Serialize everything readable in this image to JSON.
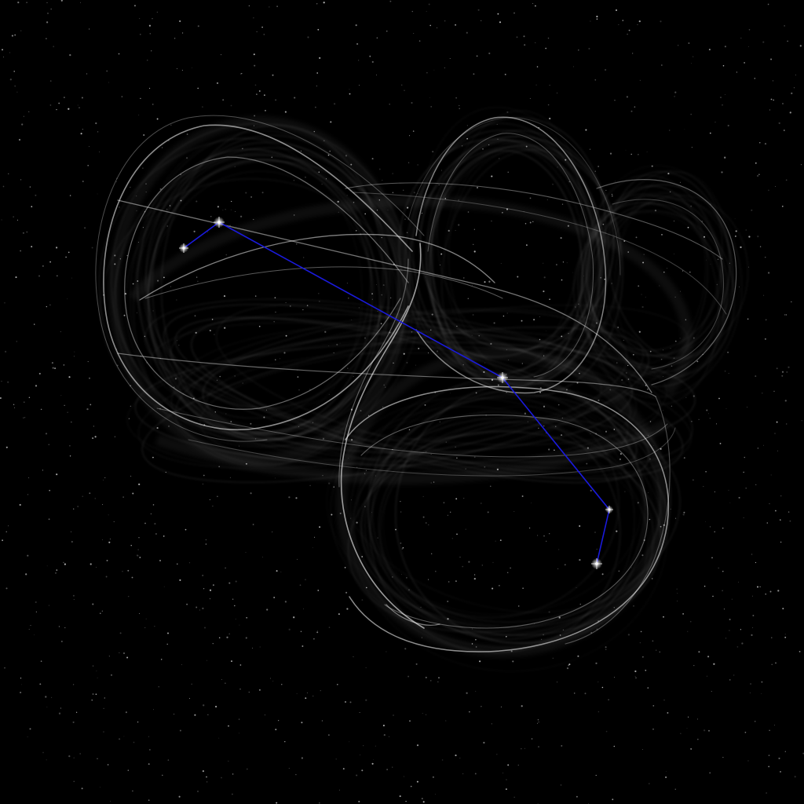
{
  "image": {
    "background_color": "#000000",
    "ribbon_color": "#ffffff",
    "path_line_color": "#1a1adc",
    "star_color": "#ffffff"
  }
}
